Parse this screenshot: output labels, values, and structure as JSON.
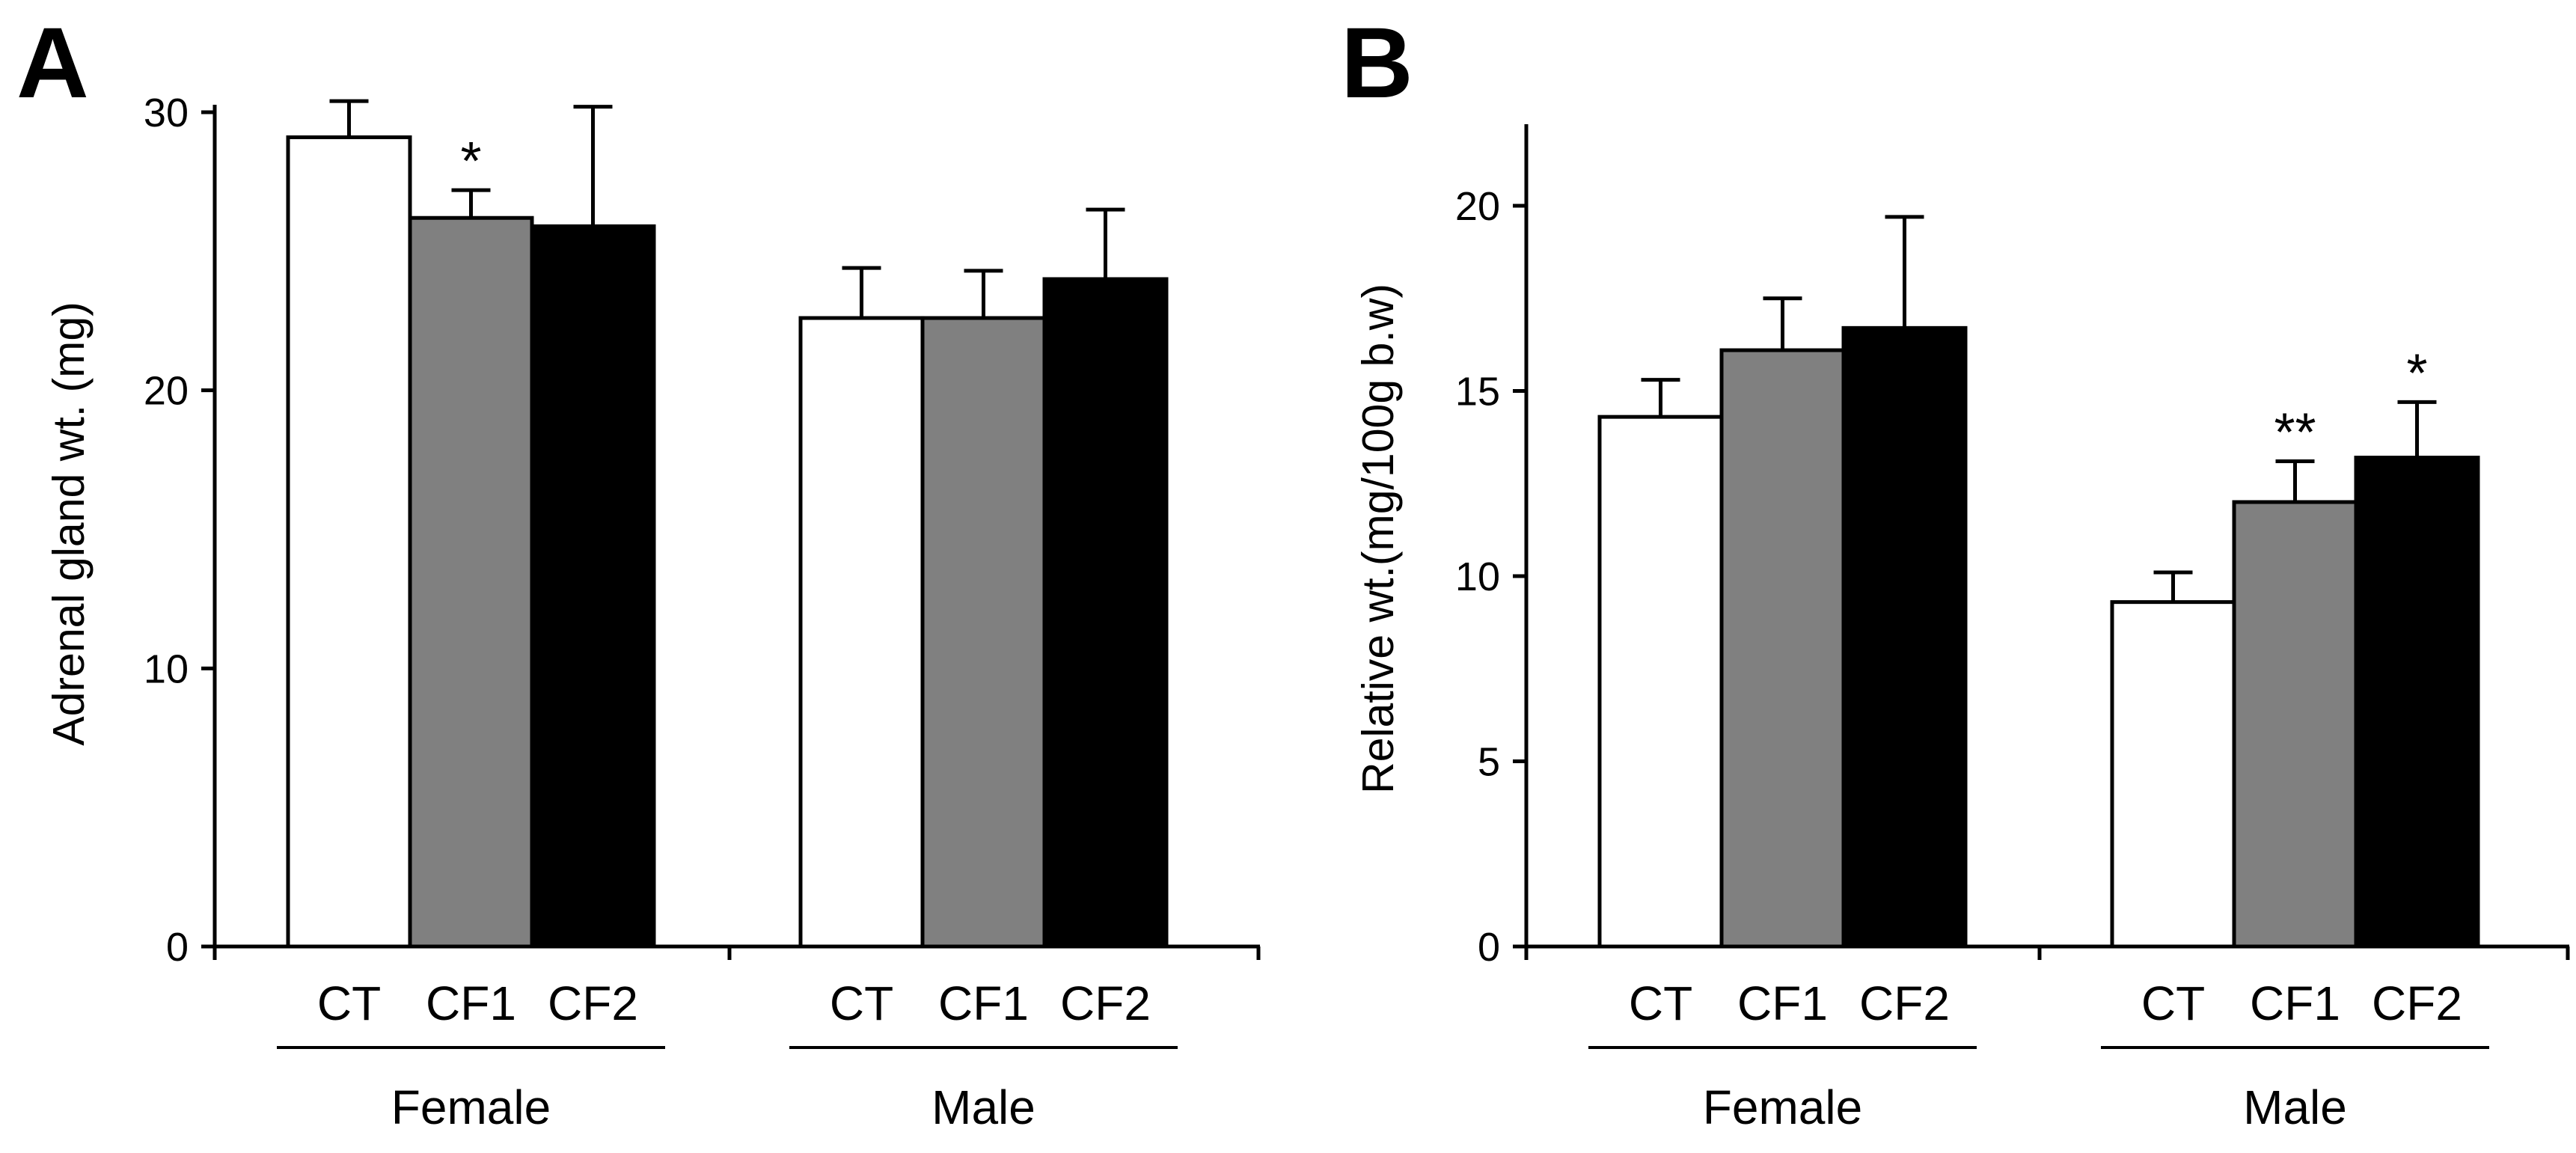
{
  "chart_data": [
    {
      "panel": "A",
      "type": "bar",
      "ylabel": "Adrenal gland wt. (mg)",
      "ylim": [
        0,
        30
      ],
      "yticks": [
        0,
        10,
        20,
        30
      ],
      "groups": [
        {
          "name": "Female",
          "bars": [
            {
              "category": "CT",
              "value": 29.1,
              "error": 1.3,
              "color": "#ffffff",
              "sig": ""
            },
            {
              "category": "CF1",
              "value": 26.2,
              "error": 1.0,
              "color": "#808080",
              "sig": "*"
            },
            {
              "category": "CF2",
              "value": 25.9,
              "error": 4.3,
              "color": "#000000",
              "sig": ""
            }
          ]
        },
        {
          "name": "Male",
          "bars": [
            {
              "category": "CT",
              "value": 22.6,
              "error": 1.8,
              "color": "#ffffff",
              "sig": ""
            },
            {
              "category": "CF1",
              "value": 22.6,
              "error": 1.7,
              "color": "#808080",
              "sig": ""
            },
            {
              "category": "CF2",
              "value": 24.0,
              "error": 2.5,
              "color": "#000000",
              "sig": ""
            }
          ]
        }
      ]
    },
    {
      "panel": "B",
      "type": "bar",
      "ylabel": "Relative wt.(mg/100g  b.w)",
      "ylim": [
        0,
        22
      ],
      "yticks": [
        0,
        5,
        10,
        15,
        20
      ],
      "groups": [
        {
          "name": "Female",
          "bars": [
            {
              "category": "CT",
              "value": 14.3,
              "error": 1.0,
              "color": "#ffffff",
              "sig": ""
            },
            {
              "category": "CF1",
              "value": 16.1,
              "error": 1.4,
              "color": "#808080",
              "sig": ""
            },
            {
              "category": "CF2",
              "value": 16.7,
              "error": 3.0,
              "color": "#000000",
              "sig": ""
            }
          ]
        },
        {
          "name": "Male",
          "bars": [
            {
              "category": "CT",
              "value": 9.3,
              "error": 0.8,
              "color": "#ffffff",
              "sig": ""
            },
            {
              "category": "CF1",
              "value": 12.0,
              "error": 1.1,
              "color": "#808080",
              "sig": "**"
            },
            {
              "category": "CF2",
              "value": 13.2,
              "error": 1.5,
              "color": "#000000",
              "sig": "*"
            }
          ]
        }
      ]
    }
  ]
}
